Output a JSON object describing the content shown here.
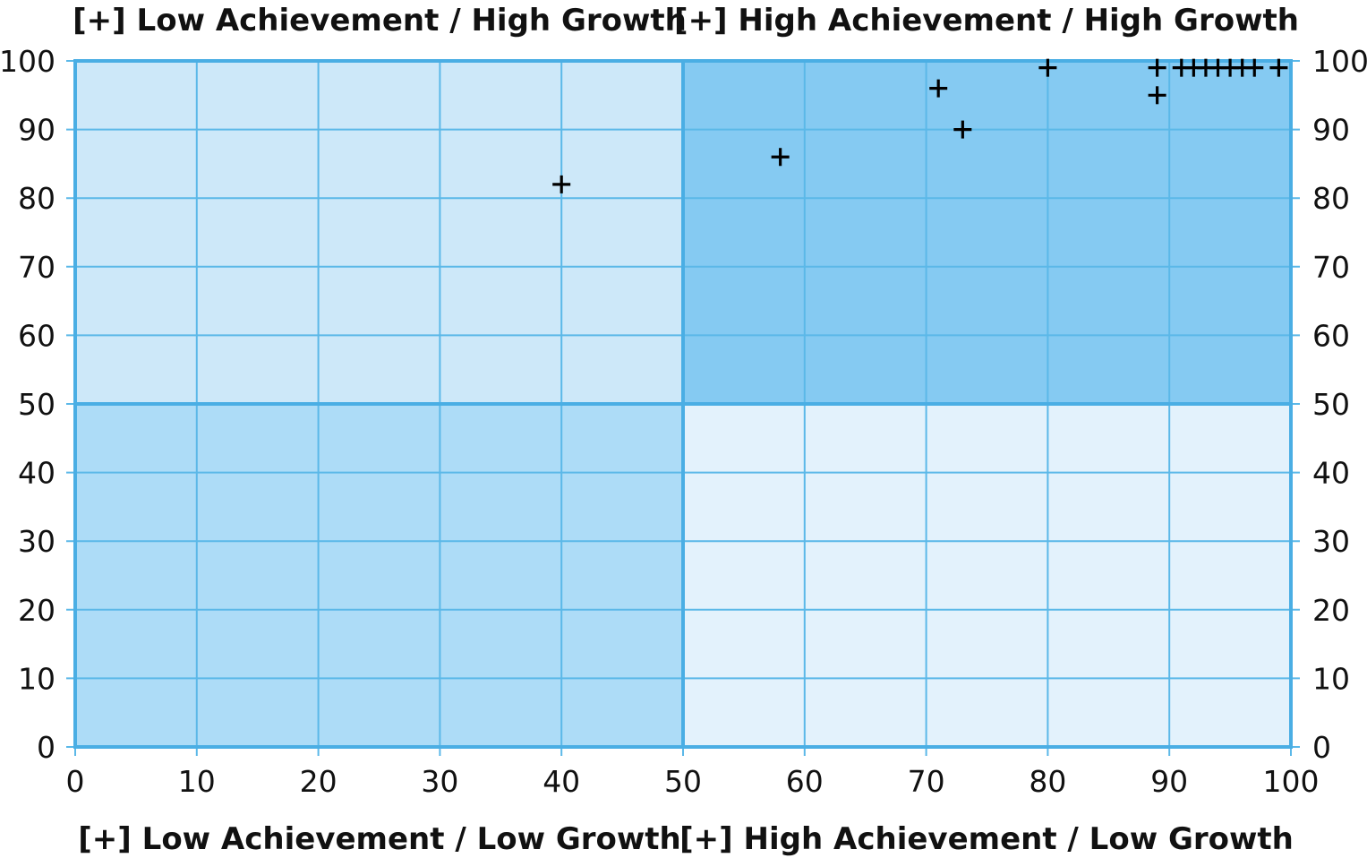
{
  "chart_data": {
    "type": "scatter",
    "xlim": [
      0,
      100
    ],
    "ylim": [
      0,
      100
    ],
    "x_ticks": [
      0,
      10,
      20,
      30,
      40,
      50,
      60,
      70,
      80,
      90,
      100
    ],
    "y_ticks": [
      0,
      10,
      20,
      30,
      40,
      50,
      60,
      70,
      80,
      90,
      100
    ],
    "y_axis_mirrored_right": true,
    "grid": true,
    "quadrant_split": {
      "x": 50,
      "y": 50
    },
    "quadrants": {
      "top_left": {
        "label": "[+] Low Achievement / High Growth",
        "color": "#cde8f9"
      },
      "top_right": {
        "label": "[+] High Achievement / High Growth",
        "color": "#85caf2"
      },
      "bottom_left": {
        "label": "[+] Low Achievement / Low Growth",
        "color": "#addcf7"
      },
      "bottom_right": {
        "label": "[+] High Achievement / Low Growth",
        "color": "#e3f2fc"
      }
    },
    "grid_color": "#5bb8e8",
    "marker": "+",
    "points": [
      {
        "x": 40,
        "y": 82
      },
      {
        "x": 58,
        "y": 86
      },
      {
        "x": 71,
        "y": 96
      },
      {
        "x": 73,
        "y": 90
      },
      {
        "x": 80,
        "y": 99
      },
      {
        "x": 89,
        "y": 99
      },
      {
        "x": 89,
        "y": 95
      },
      {
        "x": 91,
        "y": 99
      },
      {
        "x": 92,
        "y": 99
      },
      {
        "x": 93,
        "y": 99
      },
      {
        "x": 94,
        "y": 99
      },
      {
        "x": 95,
        "y": 99
      },
      {
        "x": 96,
        "y": 99
      },
      {
        "x": 97,
        "y": 99
      },
      {
        "x": 99,
        "y": 99
      }
    ]
  }
}
